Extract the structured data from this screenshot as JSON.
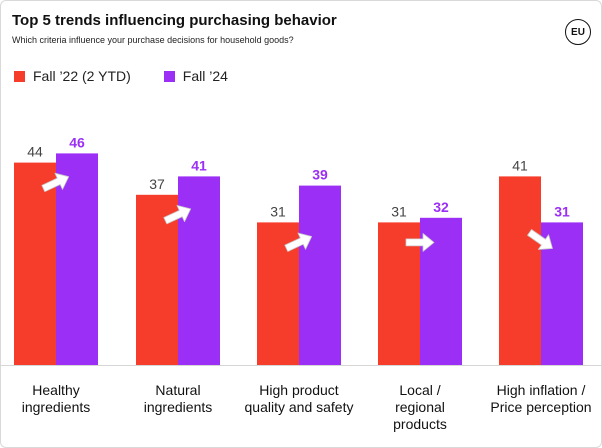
{
  "header": {
    "title": "Top 5 trends influencing purchasing behavior",
    "subtitle": "Which criteria influence your purchase decisions for household goods?",
    "region_badge": "EU"
  },
  "colors": {
    "series1": "#f63c2a",
    "series2": "#9b2ff5",
    "value_label_series1": "#444444",
    "value_label_series2": "#9b2ff5",
    "axis_line": "#d6d6d6",
    "arrow_fill": "#ffffff",
    "arrow_stroke": "#c9c9c9"
  },
  "icons": [
    "trend-up-arrow-icon",
    "trend-right-arrow-icon",
    "trend-down-arrow-icon"
  ],
  "chart_data": {
    "type": "bar",
    "title": "Top 5 trends influencing purchasing behavior",
    "subtitle": "Which criteria influence your purchase decisions for household goods?",
    "categories": [
      [
        "Healthy",
        "ingredients"
      ],
      [
        "Natural",
        "ingredients"
      ],
      [
        "High product",
        "quality and safety"
      ],
      [
        "Local /",
        "regional",
        "products"
      ],
      [
        "High inflation /",
        "Price perception"
      ]
    ],
    "series": [
      {
        "name": "Fall ’22 (2 YTD)",
        "values": [
          44,
          37,
          31,
          31,
          41
        ]
      },
      {
        "name": "Fall ’24",
        "values": [
          46,
          41,
          39,
          32,
          31
        ]
      }
    ],
    "trend": [
      "up",
      "up",
      "up",
      "flat",
      "down"
    ],
    "ylim": [
      0,
      50
    ],
    "grid": false,
    "legend": "top-left",
    "xlabel": "",
    "ylabel": ""
  }
}
